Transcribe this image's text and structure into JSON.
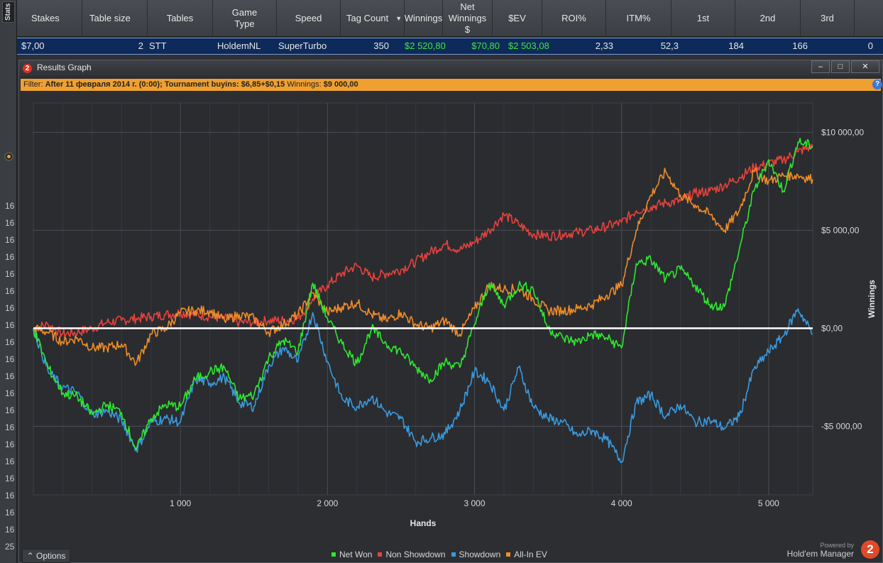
{
  "stats_tab": "Stats",
  "left_row_numbers": [
    "16",
    "16",
    "16",
    "16",
    "16",
    "16",
    "16",
    "16",
    "16",
    "16",
    "16",
    "16",
    "16",
    "16",
    "16",
    "16",
    "16",
    "16",
    "16",
    "16",
    "25"
  ],
  "grid": {
    "headers": [
      "Stakes",
      "Table size",
      "Tables",
      "Game Type",
      "Speed",
      "Tag Count",
      "Winnings",
      "Net Winnings $",
      "$EV",
      "ROI%",
      "ITM%",
      "1st",
      "2nd",
      "3rd"
    ],
    "row": [
      "$7,00",
      "2",
      "STT",
      "HoldemNL",
      "SuperTurbo",
      "350",
      "$2 520,80",
      "$70,80",
      "$2 503,08",
      "2,33",
      "52,3",
      "184",
      "166",
      "0"
    ]
  },
  "window": {
    "title": "Results Graph",
    "app_icon": "2",
    "minimize": "–",
    "maximize": "□",
    "close": "✕"
  },
  "filter": {
    "prefix": "Filter:",
    "date": "After 11 февраля 2014 г. (0:00);",
    "buyins": "Tournament buyins: $6,85+$0,15",
    "winnings_label": "Winnings:",
    "winnings_value": "$9 000,00"
  },
  "bottom": {
    "options": "Options",
    "powered_by": "Powered by",
    "brand": "Hold'em Manager",
    "logo": "2"
  },
  "colors": {
    "net_won": "#2ee82e",
    "non_showdown": "#e8423c",
    "showdown": "#3a9ae0",
    "allin_ev": "#f08c28",
    "zero_line": "#ffffff",
    "filter_bar": "#f0a030",
    "grid_selected_row": "#0e2a5a"
  },
  "chart_data": {
    "type": "line",
    "xlabel": "Hands",
    "ylabel": "Winnings",
    "xlim": [
      0,
      5300
    ],
    "ylim": [
      -8500,
      11500
    ],
    "x_ticks": [
      1000,
      2000,
      3000,
      4000,
      5000
    ],
    "x_tick_labels": [
      "1 000",
      "2 000",
      "3 000",
      "4 000",
      "5 000"
    ],
    "y_ticks": [
      10000,
      5000,
      0,
      -5000
    ],
    "y_tick_labels": [
      "$10 000,00",
      "$5 000,00",
      "$0,00",
      "-$5 000,00"
    ],
    "grid": true,
    "legend_position": "bottom",
    "series": [
      {
        "name": "Net Won",
        "x": [
          0,
          100,
          200,
          300,
          400,
          500,
          600,
          700,
          800,
          900,
          1000,
          1100,
          1200,
          1300,
          1400,
          1500,
          1600,
          1700,
          1800,
          1900,
          2000,
          2100,
          2200,
          2300,
          2400,
          2500,
          2600,
          2700,
          2800,
          2900,
          3000,
          3100,
          3200,
          3300,
          3400,
          3500,
          3600,
          3700,
          3800,
          3900,
          4000,
          4100,
          4200,
          4300,
          4400,
          4500,
          4600,
          4700,
          4800,
          4900,
          5000,
          5100,
          5200,
          5300
        ],
        "values": [
          0,
          -2000,
          -3300,
          -3500,
          -4400,
          -3900,
          -4300,
          -6200,
          -4600,
          -3900,
          -4000,
          -2600,
          -2200,
          -2000,
          -3600,
          -3400,
          -1500,
          -600,
          -1200,
          2300,
          500,
          -800,
          -1800,
          0,
          -800,
          -1200,
          -2000,
          -2600,
          -1700,
          -2000,
          200,
          2300,
          1200,
          2200,
          2000,
          0,
          -500,
          -700,
          -300,
          -500,
          -1000,
          3300,
          3500,
          2500,
          3000,
          2200,
          1200,
          1100,
          4000,
          7000,
          8600,
          7000,
          9500,
          9300
        ]
      },
      {
        "name": "Non Showdown",
        "x": [
          0,
          100,
          200,
          300,
          400,
          500,
          600,
          700,
          800,
          900,
          1000,
          1100,
          1200,
          1300,
          1400,
          1500,
          1600,
          1700,
          1800,
          1900,
          2000,
          2100,
          2200,
          2300,
          2400,
          2500,
          2600,
          2700,
          2800,
          2900,
          3000,
          3100,
          3200,
          3300,
          3400,
          3500,
          3600,
          3700,
          3800,
          3900,
          4000,
          4100,
          4200,
          4300,
          4400,
          4500,
          4600,
          4700,
          4800,
          4900,
          5000,
          5100,
          5200,
          5300
        ],
        "values": [
          0,
          200,
          -300,
          -200,
          0,
          300,
          400,
          500,
          600,
          700,
          800,
          700,
          600,
          500,
          300,
          300,
          400,
          400,
          500,
          1500,
          2200,
          2800,
          3200,
          2600,
          2800,
          3000,
          3400,
          3900,
          4300,
          4000,
          4400,
          5000,
          5800,
          5300,
          4800,
          4700,
          4800,
          4900,
          5000,
          5200,
          5400,
          6000,
          6200,
          6400,
          6500,
          6900,
          7000,
          7300,
          7700,
          8200,
          8400,
          8600,
          9000,
          9300
        ]
      },
      {
        "name": "Showdown",
        "x": [
          0,
          100,
          200,
          300,
          400,
          500,
          600,
          700,
          800,
          900,
          1000,
          1100,
          1200,
          1300,
          1400,
          1500,
          1600,
          1700,
          1800,
          1900,
          2000,
          2100,
          2200,
          2300,
          2400,
          2500,
          2600,
          2700,
          2800,
          2900,
          3000,
          3100,
          3200,
          3300,
          3400,
          3500,
          3600,
          3700,
          3800,
          3900,
          4000,
          4100,
          4200,
          4300,
          4400,
          4500,
          4600,
          4700,
          4800,
          4900,
          5000,
          5100,
          5200,
          5300
        ],
        "values": [
          0,
          -2200,
          -3000,
          -3300,
          -4400,
          -4200,
          -4700,
          -6200,
          -4800,
          -4600,
          -4800,
          -2600,
          -2800,
          -2500,
          -3800,
          -4000,
          -1900,
          -1000,
          -1700,
          800,
          -1700,
          -3600,
          -4000,
          -3500,
          -4300,
          -4600,
          -5800,
          -5600,
          -5400,
          -4200,
          -2200,
          -2700,
          -4200,
          -2000,
          -4000,
          -4600,
          -4800,
          -5500,
          -5200,
          -5700,
          -6800,
          -3800,
          -3400,
          -4500,
          -3900,
          -4800,
          -4700,
          -5100,
          -4500,
          -2100,
          -1200,
          -400,
          1000,
          -300
        ]
      },
      {
        "name": "All-In EV",
        "x": [
          0,
          100,
          200,
          300,
          400,
          500,
          600,
          700,
          800,
          900,
          1000,
          1100,
          1200,
          1300,
          1400,
          1500,
          1600,
          1700,
          1800,
          1900,
          2000,
          2100,
          2200,
          2300,
          2400,
          2500,
          2600,
          2700,
          2800,
          2900,
          3000,
          3100,
          3200,
          3300,
          3400,
          3500,
          3600,
          3700,
          3800,
          3900,
          4000,
          4100,
          4200,
          4300,
          4400,
          4500,
          4600,
          4700,
          4800,
          4900,
          5000,
          5100,
          5200,
          5300
        ],
        "values": [
          0,
          -200,
          -700,
          -500,
          -1000,
          -1000,
          -800,
          -1800,
          -300,
          0,
          800,
          900,
          900,
          400,
          700,
          500,
          -200,
          200,
          700,
          1800,
          800,
          1100,
          1300,
          700,
          400,
          800,
          200,
          0,
          400,
          -300,
          1000,
          2200,
          2000,
          2000,
          1500,
          900,
          900,
          1000,
          1200,
          1700,
          2200,
          5000,
          6800,
          8000,
          6800,
          6300,
          5800,
          5000,
          6000,
          8000,
          7500,
          7800,
          7800,
          7600
        ]
      }
    ]
  }
}
